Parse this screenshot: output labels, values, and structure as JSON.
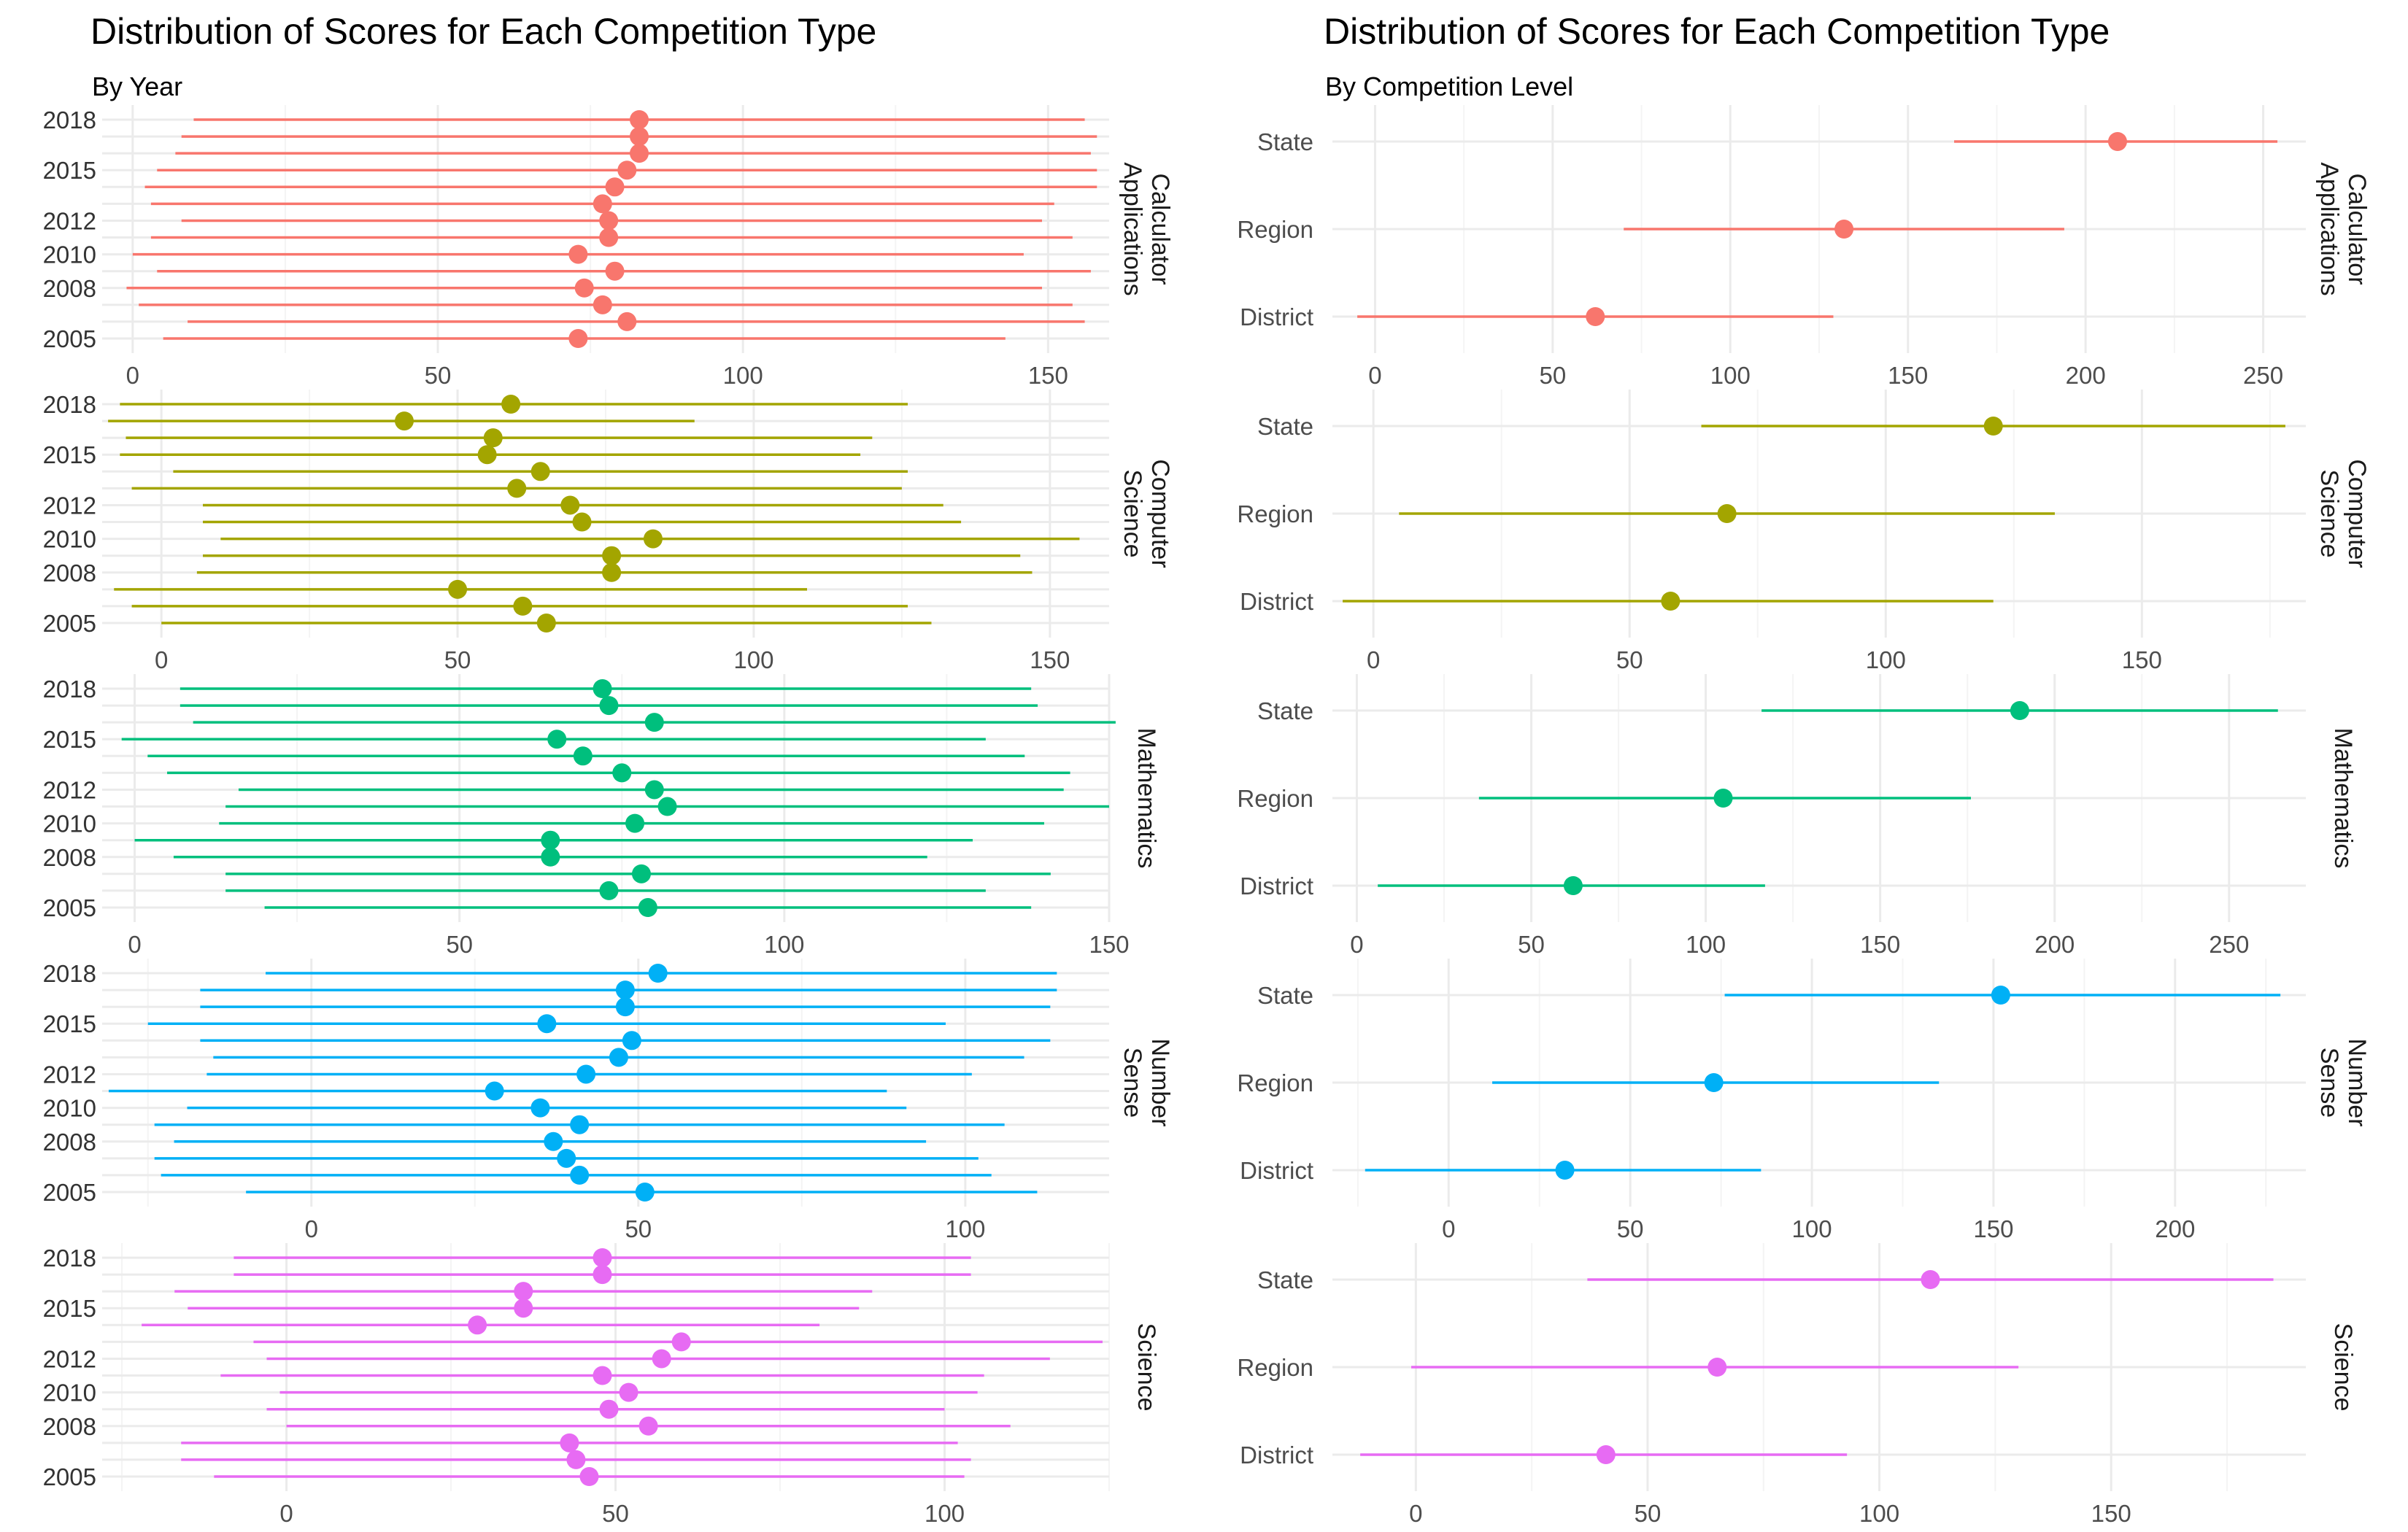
{
  "chart_data": [
    {
      "type": "errorbar",
      "title": "Distribution of Scores for Each Competition Type",
      "subtitle": "By Year",
      "y_categories": [
        "2005",
        "2006",
        "2007",
        "2008",
        "2009",
        "2010",
        "2011",
        "2012",
        "2013",
        "2014",
        "2015",
        "2016",
        "2017",
        "2018"
      ],
      "y_tick_labels": [
        "2005",
        "2008",
        "2010",
        "2012",
        "2015",
        "2018"
      ],
      "panels": [
        {
          "facet_label": "Calculator\nApplications",
          "color": "#F8766D",
          "xlim": [
            -5,
            160
          ],
          "x_ticks": [
            0,
            50,
            100,
            150
          ],
          "rows": [
            {
              "cat": "2005",
              "mean": 73,
              "low": 5,
              "high": 143
            },
            {
              "cat": "2006",
              "mean": 81,
              "low": 9,
              "high": 156
            },
            {
              "cat": "2007",
              "mean": 77,
              "low": 1,
              "high": 154
            },
            {
              "cat": "2008",
              "mean": 74,
              "low": -1,
              "high": 149
            },
            {
              "cat": "2009",
              "mean": 79,
              "low": 4,
              "high": 157
            },
            {
              "cat": "2010",
              "mean": 73,
              "low": 0,
              "high": 146
            },
            {
              "cat": "2011",
              "mean": 78,
              "low": 3,
              "high": 154
            },
            {
              "cat": "2012",
              "mean": 78,
              "low": 8,
              "high": 149
            },
            {
              "cat": "2013",
              "mean": 77,
              "low": 3,
              "high": 151
            },
            {
              "cat": "2014",
              "mean": 79,
              "low": 2,
              "high": 158
            },
            {
              "cat": "2015",
              "mean": 81,
              "low": 4,
              "high": 158
            },
            {
              "cat": "2016",
              "mean": 83,
              "low": 7,
              "high": 157
            },
            {
              "cat": "2017",
              "mean": 83,
              "low": 8,
              "high": 158
            },
            {
              "cat": "2018",
              "mean": 83,
              "low": 10,
              "high": 156
            }
          ]
        },
        {
          "facet_label": "Computer\nScience",
          "color": "#A3A500",
          "xlim": [
            -10,
            160
          ],
          "x_ticks": [
            0,
            50,
            100,
            150
          ],
          "rows": [
            {
              "cat": "2005",
              "mean": 65,
              "low": 0,
              "high": 130
            },
            {
              "cat": "2006",
              "mean": 61,
              "low": -5,
              "high": 126
            },
            {
              "cat": "2007",
              "mean": 50,
              "low": -8,
              "high": 109
            },
            {
              "cat": "2008",
              "mean": 76,
              "low": 6,
              "high": 147
            },
            {
              "cat": "2009",
              "mean": 76,
              "low": 7,
              "high": 145
            },
            {
              "cat": "2010",
              "mean": 83,
              "low": 10,
              "high": 155
            },
            {
              "cat": "2011",
              "mean": 71,
              "low": 7,
              "high": 135
            },
            {
              "cat": "2012",
              "mean": 69,
              "low": 7,
              "high": 132
            },
            {
              "cat": "2013",
              "mean": 60,
              "low": -5,
              "high": 125
            },
            {
              "cat": "2014",
              "mean": 64,
              "low": 2,
              "high": 126
            },
            {
              "cat": "2015",
              "mean": 55,
              "low": -7,
              "high": 118
            },
            {
              "cat": "2016",
              "mean": 56,
              "low": -6,
              "high": 120
            },
            {
              "cat": "2017",
              "mean": 41,
              "low": -9,
              "high": 90
            },
            {
              "cat": "2018",
              "mean": 59,
              "low": -7,
              "high": 126
            }
          ]
        },
        {
          "facet_label": "Mathematics",
          "color": "#00BF7D",
          "xlim": [
            -5,
            150
          ],
          "x_ticks": [
            0,
            50,
            100,
            150
          ],
          "rows": [
            {
              "cat": "2005",
              "mean": 79,
              "low": 20,
              "high": 138
            },
            {
              "cat": "2006",
              "mean": 73,
              "low": 14,
              "high": 131
            },
            {
              "cat": "2007",
              "mean": 78,
              "low": 14,
              "high": 141
            },
            {
              "cat": "2008",
              "mean": 64,
              "low": 6,
              "high": 122
            },
            {
              "cat": "2009",
              "mean": 64,
              "low": 0,
              "high": 129
            },
            {
              "cat": "2010",
              "mean": 77,
              "low": 13,
              "high": 140
            },
            {
              "cat": "2011",
              "mean": 82,
              "low": 14,
              "high": 150
            },
            {
              "cat": "2012",
              "mean": 80,
              "low": 16,
              "high": 143
            },
            {
              "cat": "2013",
              "mean": 75,
              "low": 5,
              "high": 144
            },
            {
              "cat": "2014",
              "mean": 69,
              "low": 2,
              "high": 137
            },
            {
              "cat": "2015",
              "mean": 65,
              "low": -2,
              "high": 131
            },
            {
              "cat": "2016",
              "mean": 80,
              "low": 9,
              "high": 151
            },
            {
              "cat": "2017",
              "mean": 73,
              "low": 7,
              "high": 139
            },
            {
              "cat": "2018",
              "mean": 72,
              "low": 7,
              "high": 138
            }
          ]
        },
        {
          "facet_label": "Number\nSense",
          "color": "#00B0F6",
          "xlim": [
            -32,
            122
          ],
          "x_ticks": [
            0,
            50,
            100
          ],
          "rows": [
            {
              "cat": "2005",
              "mean": 51,
              "low": -10,
              "high": 111
            },
            {
              "cat": "2006",
              "mean": 41,
              "low": -23,
              "high": 104
            },
            {
              "cat": "2007",
              "mean": 39,
              "low": -24,
              "high": 102
            },
            {
              "cat": "2008",
              "mean": 37,
              "low": -21,
              "high": 94
            },
            {
              "cat": "2009",
              "mean": 41,
              "low": -24,
              "high": 106
            },
            {
              "cat": "2010",
              "mean": 35,
              "low": -19,
              "high": 91
            },
            {
              "cat": "2011",
              "mean": 28,
              "low": -31,
              "high": 88
            },
            {
              "cat": "2012",
              "mean": 42,
              "low": -16,
              "high": 101
            },
            {
              "cat": "2013",
              "mean": 47,
              "low": -15,
              "high": 109
            },
            {
              "cat": "2014",
              "mean": 49,
              "low": -17,
              "high": 113
            },
            {
              "cat": "2015",
              "mean": 36,
              "low": -25,
              "high": 97
            },
            {
              "cat": "2016",
              "mean": 48,
              "low": -17,
              "high": 113
            },
            {
              "cat": "2017",
              "mean": 48,
              "low": -17,
              "high": 114
            },
            {
              "cat": "2018",
              "mean": 53,
              "low": -7,
              "high": 114
            }
          ]
        },
        {
          "facet_label": "Science",
          "color": "#E76BF3",
          "xlim": [
            -28,
            125
          ],
          "x_ticks": [
            0,
            50,
            100
          ],
          "rows": [
            {
              "cat": "2005",
              "mean": 46,
              "low": -11,
              "high": 103
            },
            {
              "cat": "2006",
              "mean": 44,
              "low": -16,
              "high": 104
            },
            {
              "cat": "2007",
              "mean": 43,
              "low": -16,
              "high": 102
            },
            {
              "cat": "2008",
              "mean": 55,
              "low": 0,
              "high": 110
            },
            {
              "cat": "2009",
              "mean": 49,
              "low": -3,
              "high": 100
            },
            {
              "cat": "2010",
              "mean": 52,
              "low": -1,
              "high": 105
            },
            {
              "cat": "2011",
              "mean": 48,
              "low": -10,
              "high": 106
            },
            {
              "cat": "2012",
              "mean": 57,
              "low": -3,
              "high": 116
            },
            {
              "cat": "2013",
              "mean": 60,
              "low": -5,
              "high": 124
            },
            {
              "cat": "2014",
              "mean": 29,
              "low": -22,
              "high": 81
            },
            {
              "cat": "2015",
              "mean": 36,
              "low": -15,
              "high": 87
            },
            {
              "cat": "2016",
              "mean": 36,
              "low": -17,
              "high": 89
            },
            {
              "cat": "2017",
              "mean": 48,
              "low": -8,
              "high": 104
            },
            {
              "cat": "2018",
              "mean": 48,
              "low": -8,
              "high": 104
            }
          ]
        }
      ]
    },
    {
      "type": "errorbar",
      "title": "Distribution of Scores for Each Competition Type",
      "subtitle": "By Competition Level",
      "y_categories": [
        "District",
        "Region",
        "State"
      ],
      "y_tick_labels": [
        "District",
        "Region",
        "State"
      ],
      "panels": [
        {
          "facet_label": "Calculator\nApplications",
          "color": "#F8766D",
          "xlim": [
            -12,
            262
          ],
          "x_ticks": [
            0,
            50,
            100,
            150,
            200,
            250
          ],
          "rows": [
            {
              "cat": "District",
              "mean": 62,
              "low": -5,
              "high": 129
            },
            {
              "cat": "Region",
              "mean": 132,
              "low": 70,
              "high": 194
            },
            {
              "cat": "State",
              "mean": 209,
              "low": 163,
              "high": 254
            }
          ]
        },
        {
          "facet_label": "Computer\nScience",
          "color": "#A3A500",
          "xlim": [
            -8,
            182
          ],
          "x_ticks": [
            0,
            50,
            100,
            150
          ],
          "rows": [
            {
              "cat": "District",
              "mean": 58,
              "low": -6,
              "high": 121
            },
            {
              "cat": "Region",
              "mean": 69,
              "low": 5,
              "high": 133
            },
            {
              "cat": "State",
              "mean": 121,
              "low": 64,
              "high": 178
            }
          ]
        },
        {
          "facet_label": "Mathematics",
          "color": "#00BF7D",
          "xlim": [
            -7,
            272
          ],
          "x_ticks": [
            0,
            50,
            100,
            150,
            200,
            250
          ],
          "rows": [
            {
              "cat": "District",
              "mean": 62,
              "low": 6,
              "high": 117
            },
            {
              "cat": "Region",
              "mean": 105,
              "low": 35,
              "high": 176
            },
            {
              "cat": "State",
              "mean": 190,
              "low": 116,
              "high": 264
            }
          ]
        },
        {
          "facet_label": "Number\nSense",
          "color": "#00B0F6",
          "xlim": [
            -32,
            236
          ],
          "x_ticks": [
            0,
            50,
            100,
            150,
            200
          ],
          "rows": [
            {
              "cat": "District",
              "mean": 32,
              "low": -23,
              "high": 86
            },
            {
              "cat": "Region",
              "mean": 73,
              "low": 12,
              "high": 135
            },
            {
              "cat": "State",
              "mean": 152,
              "low": 76,
              "high": 229
            }
          ]
        },
        {
          "facet_label": "Science",
          "color": "#E76BF3",
          "xlim": [
            -18,
            192
          ],
          "x_ticks": [
            0,
            50,
            100,
            150
          ],
          "rows": [
            {
              "cat": "District",
              "mean": 41,
              "low": -12,
              "high": 93
            },
            {
              "cat": "Region",
              "mean": 65,
              "low": -1,
              "high": 130
            },
            {
              "cat": "State",
              "mean": 111,
              "low": 37,
              "high": 185
            }
          ]
        }
      ]
    }
  ]
}
